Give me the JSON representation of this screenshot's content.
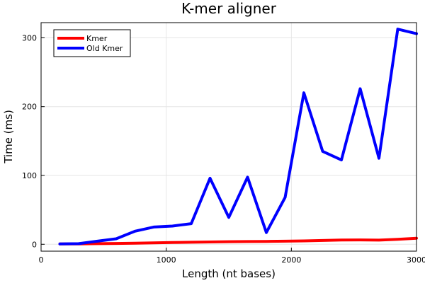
{
  "chart_data": {
    "type": "line",
    "title": "K-mer aligner",
    "xlabel": "Length (nt bases)",
    "ylabel": "Time (ms)",
    "xlim": [
      0,
      3000
    ],
    "ylim": [
      -10,
      322
    ],
    "xticks": [
      0,
      1000,
      2000,
      3000
    ],
    "yticks": [
      0,
      100,
      200,
      300
    ],
    "grid": true,
    "legend_position": "top-left",
    "series": [
      {
        "name": "Kmer",
        "color": "#ff0000",
        "x": [
          150,
          300,
          450,
          600,
          750,
          900,
          1050,
          1200,
          1350,
          1500,
          1650,
          1800,
          1950,
          2100,
          2250,
          2400,
          2550,
          2700,
          2850,
          3000
        ],
        "y": [
          0.5,
          0.6,
          0.9,
          1.2,
          1.6,
          2.0,
          2.5,
          3.0,
          3.4,
          3.8,
          4.0,
          4.2,
          4.5,
          4.9,
          5.5,
          6.2,
          6.3,
          6.0,
          7.3,
          8.8
        ]
      },
      {
        "name": "Old Kmer",
        "color": "#0000ff",
        "x": [
          150,
          300,
          450,
          600,
          750,
          900,
          1050,
          1200,
          1350,
          1500,
          1650,
          1800,
          1950,
          2100,
          2250,
          2400,
          2550,
          2700,
          2850,
          3000
        ],
        "y": [
          0.5,
          0.9,
          4.5,
          8,
          19,
          25,
          26.5,
          30,
          96,
          39,
          97.5,
          17,
          68,
          220,
          135,
          122.5,
          226,
          125,
          312.5,
          306
        ]
      }
    ]
  }
}
